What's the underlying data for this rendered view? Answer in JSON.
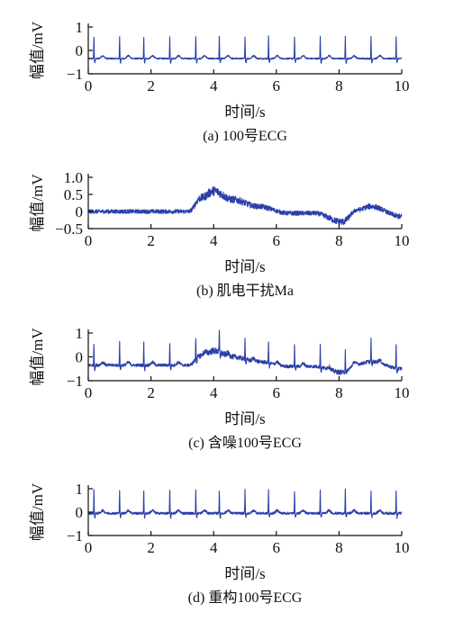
{
  "chart_data": [
    {
      "type": "line",
      "caption": "(a) 100号ECG",
      "xlabel": "时间/s",
      "ylabel": "幅值/mV",
      "xlim": [
        0,
        10
      ],
      "ylim": [
        -1,
        1
      ],
      "xticks": [
        "0",
        "2",
        "4",
        "6",
        "8",
        "10"
      ],
      "yticks": [
        "1",
        "0",
        "−1"
      ],
      "series": [
        {
          "values_description": "clean ECG, baseline ≈ -0.35 mV, R peaks ≈ 1.0 mV",
          "baseline": -0.35,
          "r_peaks_s": [
            0.18,
            1.0,
            1.77,
            2.6,
            3.43,
            4.18,
            5.0,
            5.75,
            6.58,
            7.4,
            8.2,
            9.02,
            9.82
          ],
          "r_amplitude": 0.95,
          "noise": 0.03,
          "wander": []
        }
      ]
    },
    {
      "type": "line",
      "caption": "(b) 肌电干扰Ma",
      "xlabel": "时间/s",
      "ylabel": "幅值/mV",
      "xlim": [
        0,
        10
      ],
      "ylim": [
        -0.5,
        1.0
      ],
      "xticks": [
        "0",
        "2",
        "4",
        "6",
        "8",
        "10"
      ],
      "yticks": [
        "1.0",
        "0.5",
        "0",
        "−0.5"
      ],
      "series": [
        {
          "baseline": 0,
          "r_peaks_s": [],
          "r_amplitude": 0,
          "noise": 0.06,
          "wander": [
            [
              0,
              0.0
            ],
            [
              3.2,
              0.0
            ],
            [
              3.6,
              0.4
            ],
            [
              4.0,
              0.6
            ],
            [
              4.6,
              0.35
            ],
            [
              5.4,
              0.15
            ],
            [
              6.4,
              -0.05
            ],
            [
              7.2,
              -0.05
            ],
            [
              8.1,
              -0.3
            ],
            [
              8.6,
              0.05
            ],
            [
              9.0,
              0.15
            ],
            [
              10,
              -0.15
            ]
          ]
        }
      ]
    },
    {
      "type": "line",
      "caption": "(c) 含噪100号ECG",
      "xlabel": "时间/s",
      "ylabel": "幅值/mV",
      "xlim": [
        0,
        10
      ],
      "ylim": [
        -1,
        1
      ],
      "xticks": [
        "0",
        "2",
        "4",
        "6",
        "8",
        "10"
      ],
      "yticks": [
        "1",
        "0",
        "−1"
      ],
      "series": [
        {
          "baseline": -0.35,
          "r_peaks_s": [
            0.18,
            1.0,
            1.77,
            2.6,
            3.43,
            4.18,
            5.0,
            5.75,
            6.58,
            7.4,
            8.2,
            9.02,
            9.82
          ],
          "r_amplitude": 0.95,
          "noise": 0.06,
          "wander": [
            [
              0,
              0.0
            ],
            [
              3.2,
              0.0
            ],
            [
              3.6,
              0.4
            ],
            [
              4.0,
              0.6
            ],
            [
              4.6,
              0.35
            ],
            [
              5.4,
              0.15
            ],
            [
              6.4,
              -0.05
            ],
            [
              7.2,
              -0.05
            ],
            [
              8.1,
              -0.3
            ],
            [
              8.6,
              0.05
            ],
            [
              9.0,
              0.15
            ],
            [
              10,
              -0.15
            ]
          ]
        }
      ]
    },
    {
      "type": "line",
      "caption": "(d) 重构100号ECG",
      "xlabel": "时间/s",
      "ylabel": "幅值/mV",
      "xlim": [
        0,
        10
      ],
      "ylim": [
        -1,
        1
      ],
      "xticks": [
        "0",
        "2",
        "4",
        "6",
        "8",
        "10"
      ],
      "yticks": [
        "1",
        "0",
        "−1"
      ],
      "series": [
        {
          "baseline": -0.05,
          "r_peaks_s": [
            0.18,
            1.0,
            1.77,
            2.6,
            3.43,
            4.18,
            5.0,
            5.75,
            6.58,
            7.4,
            8.2,
            9.02,
            9.82
          ],
          "r_amplitude": 1.0,
          "noise": 0.05,
          "wander": []
        }
      ]
    }
  ],
  "colors": {
    "signal": "#2a3fa8",
    "axis": "#111111"
  }
}
